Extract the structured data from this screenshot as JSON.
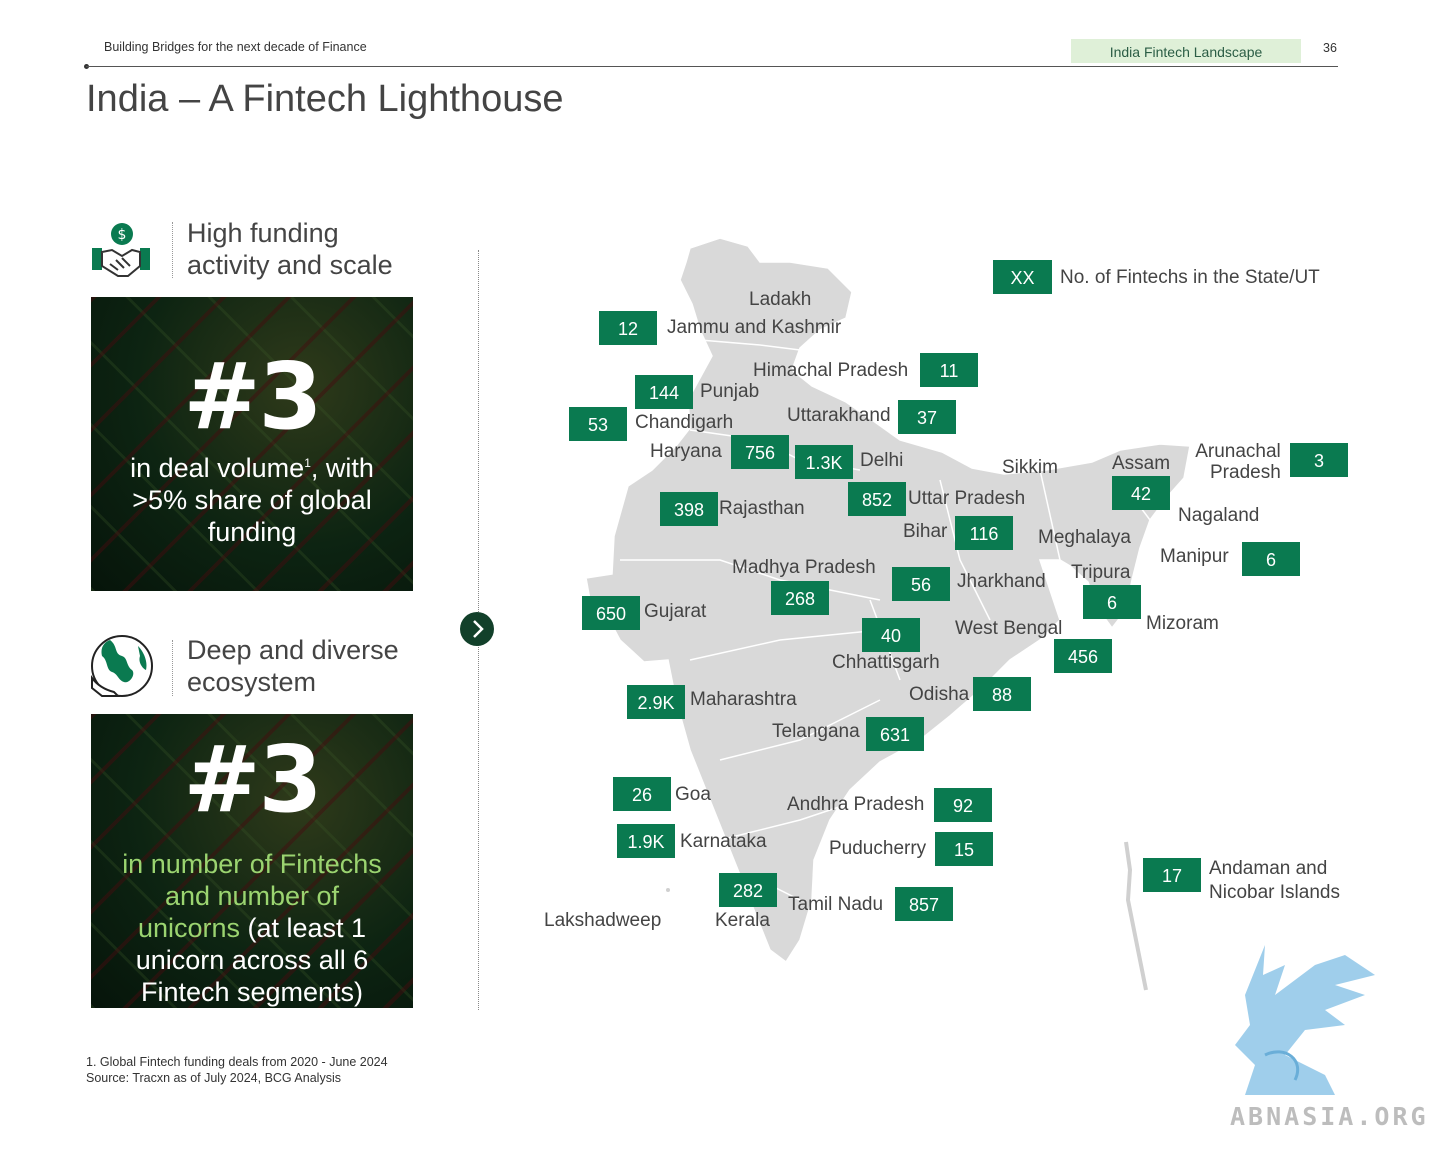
{
  "header": {
    "left_text": "Building Bridges for the next decade of Finance",
    "tag": "India Fintech Landscape",
    "page": "36"
  },
  "title": "India – A Fintech Lighthouse",
  "left": {
    "section1": {
      "icon": "handshake-dollar-icon",
      "title_line1": "High funding",
      "title_line2": "activity and scale",
      "big": "#3",
      "text_line1_pre": "in deal volume",
      "text_line1_sup": "1",
      "text_line1_post": ", with",
      "text_line2": ">5% share of global",
      "text_line3": "funding"
    },
    "section2": {
      "icon": "globe-hand-icon",
      "title_line1": "Deep and diverse",
      "title_line2": "ecosystem",
      "big": "#3",
      "green_line1": "in number of Fintechs",
      "green_line2": "and number of",
      "green_line3": "unicorns",
      "white_line3": " (at least 1",
      "white_line4": "unicorn across all 6",
      "white_line5": "Fintech segments)"
    },
    "arrow_icon": "chevron-right-icon"
  },
  "footnotes": {
    "line1": "1. Global Fintech funding deals from 2020 - June 2024",
    "line2": "Source: Tracxn as of July 2024, BCG Analysis"
  },
  "legend": {
    "box": "XX",
    "text": "No. of Fintechs in the State/UT"
  },
  "states": {
    "ladakh": "Ladakh",
    "jk": {
      "name": "Jammu and Kashmir",
      "count": "12"
    },
    "hp": {
      "name": "Himachal Pradesh",
      "count": "11"
    },
    "punjab": {
      "name": "Punjab",
      "count": "144"
    },
    "chandigarh": {
      "name": "Chandigarh",
      "count": "53"
    },
    "uttarakhand": {
      "name": "Uttarakhand",
      "count": "37"
    },
    "haryana": {
      "name": "Haryana",
      "count": "756"
    },
    "delhi": {
      "name": "Delhi",
      "count": "1.3K"
    },
    "sikkim": "Sikkim",
    "assam": {
      "name": "Assam",
      "count": "42"
    },
    "arunachal_line1": "Arunachal",
    "arunachal_line2": "Pradesh",
    "arunachal_count": "3",
    "rajasthan": {
      "name": "Rajasthan",
      "count": "398"
    },
    "up": {
      "name": "Uttar Pradesh",
      "count": "852"
    },
    "nagaland": "Nagaland",
    "bihar": {
      "name": "Bihar",
      "count": "116"
    },
    "meghalaya": "Meghalaya",
    "manipur": {
      "name": "Manipur",
      "count": "6"
    },
    "mp": {
      "name": "Madhya Pradesh",
      "count": "268"
    },
    "jharkhand": {
      "name": "Jharkhand",
      "count": "56"
    },
    "tripura": {
      "name": "Tripura",
      "count": "6"
    },
    "gujarat": {
      "name": "Gujarat",
      "count": "650"
    },
    "mizoram": "Mizoram",
    "wb": {
      "name": "West Bengal",
      "count": "456"
    },
    "chhattisgarh": {
      "name": "Chhattisgarh",
      "count": "40"
    },
    "odisha": {
      "name": "Odisha",
      "count": "88"
    },
    "maharashtra": {
      "name": "Maharashtra",
      "count": "2.9K"
    },
    "telangana": {
      "name": "Telangana",
      "count": "631"
    },
    "goa": {
      "name": "Goa",
      "count": "26"
    },
    "ap": {
      "name": "Andhra Pradesh",
      "count": "92"
    },
    "karnataka": {
      "name": "Karnataka",
      "count": "1.9K"
    },
    "puducherry": {
      "name": "Puducherry",
      "count": "15"
    },
    "andaman_line1": "Andaman and",
    "andaman_line2": "Nicobar Islands",
    "andaman_count": "17",
    "kerala": {
      "name": "Kerala",
      "count": "282"
    },
    "tn": {
      "name": "Tamil Nadu",
      "count": "857"
    },
    "lakshadweep": "Lakshadweep"
  },
  "watermark": "ABNASIA.ORG",
  "colors": {
    "badge": "#0a7a50",
    "map": "#d9d9d9",
    "accent_green": "#9bd470",
    "card_dark": "#0d2412"
  }
}
